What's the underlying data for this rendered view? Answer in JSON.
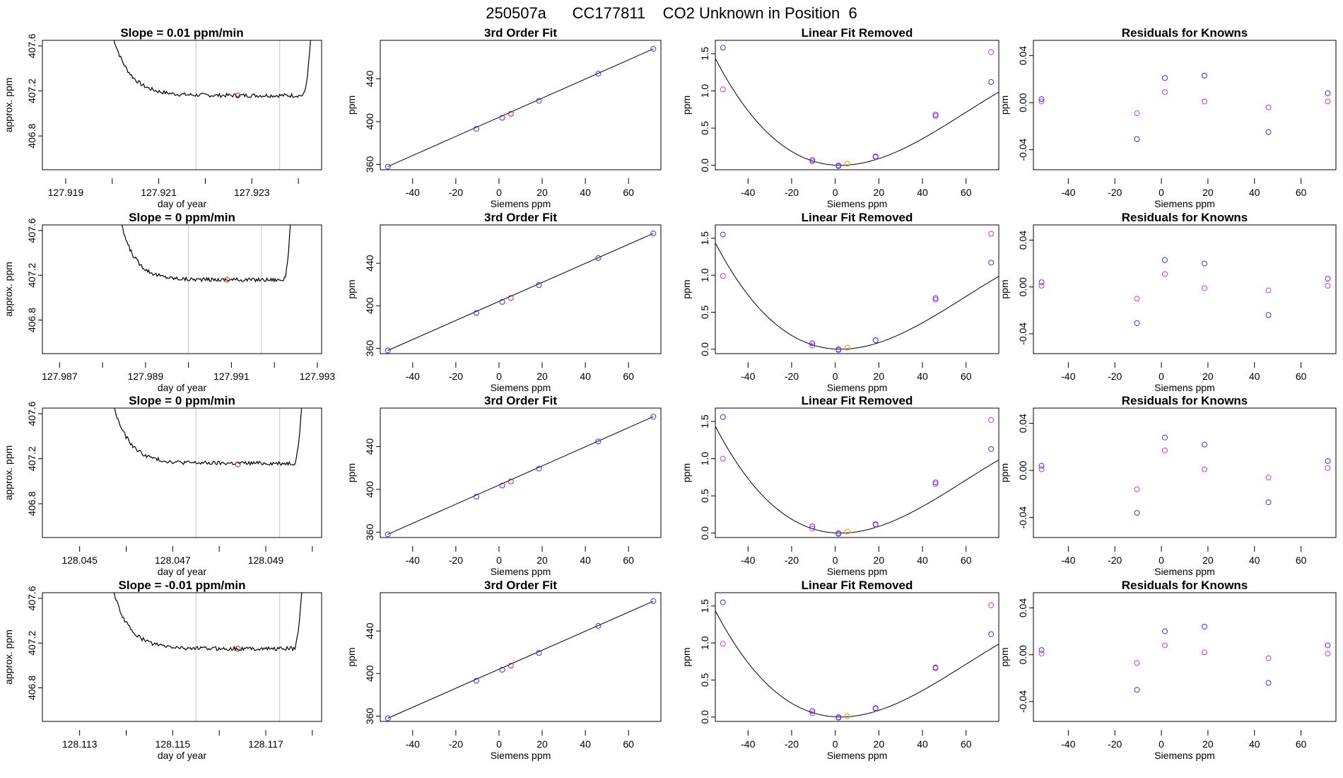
{
  "figure": {
    "title": "250507a      CC177811    CO2 Unknown in Position  6"
  },
  "chart_data": [
    {
      "type": "line",
      "panel": "trace",
      "row": 0,
      "title": "Slope =  0.01  ppm/min",
      "xlabel": "day of year",
      "ylabel": "approx. ppm",
      "xlim": [
        127.9185,
        127.9245
      ],
      "ylim": [
        406.5,
        407.65
      ],
      "xticks": [
        "127.919",
        "127.921",
        "127.923"
      ],
      "xtick_values": [
        127.919,
        127.921,
        127.923
      ],
      "minor_xticks": [
        127.92,
        127.922,
        127.924
      ],
      "yticks": [
        "406.8",
        "407.2",
        "407.6"
      ],
      "ytick_values": [
        406.8,
        407.2,
        407.6
      ],
      "start": 127.92,
      "end": 127.9244,
      "window": [
        127.9218,
        127.9236
      ],
      "plateau": 407.16,
      "settle_rise": 0.55,
      "marker": {
        "x": 127.9227,
        "y": 407.16
      },
      "trace_color": "#000000",
      "marker_color": "#dd2222",
      "window_color": "#c8c8c8"
    },
    {
      "type": "scatter",
      "panel": "fit",
      "row": 0,
      "title": "3rd Order Fit",
      "xlabel": "Siemens ppm",
      "ylabel": "ppm",
      "xlim": [
        -55,
        75
      ],
      "ylim": [
        355,
        476
      ],
      "xticks": [
        "-40",
        "-20",
        "0",
        "20",
        "40",
        "60"
      ],
      "xtick_values": [
        -40,
        -20,
        0,
        20,
        40,
        60
      ],
      "yticks": [
        "360",
        "400",
        "440"
      ],
      "ytick_values": [
        360,
        400,
        440
      ],
      "knowns": {
        "x": [
          -51.5,
          -10.5,
          1.5,
          18.5,
          46,
          71.5
        ],
        "y": [
          358,
          393.2,
          403.6,
          419.4,
          444.8,
          468
        ]
      },
      "unknown": {
        "x": 5.5,
        "y": 407.4
      },
      "line": {
        "x": [
          -51.5,
          71.5
        ],
        "y": [
          358,
          468
        ]
      },
      "known_color": "#3333ff",
      "unknown_color": "#dd2222"
    },
    {
      "type": "scatter",
      "panel": "linfit",
      "row": 0,
      "title": "Linear Fit Removed",
      "xlabel": "Siemens ppm",
      "ylabel": "ppm",
      "xlim": [
        -55,
        75
      ],
      "ylim": [
        -0.06,
        1.68
      ],
      "xticks": [
        "-40",
        "-20",
        "0",
        "20",
        "40",
        "60"
      ],
      "xtick_values": [
        -40,
        -20,
        0,
        20,
        40,
        60
      ],
      "yticks": [
        "0.0",
        "0.5",
        "1.0",
        "1.5"
      ],
      "ytick_values": [
        0,
        0.5,
        1,
        1.5
      ],
      "curve_vertex": 2.5,
      "curve_a": 0.000325,
      "curve_b": 1.9e-06,
      "blue": {
        "x": [
          -51.5,
          -10.5,
          1.5,
          18.5,
          46,
          71.5
        ],
        "y": [
          1.58,
          0.07,
          -0.01,
          0.12,
          0.68,
          1.12
        ]
      },
      "magenta": {
        "x": [
          -51.5,
          -10.5,
          1.5,
          18.5,
          46,
          71.5
        ],
        "y": [
          1.02,
          0.05,
          0.0,
          0.11,
          0.66,
          1.52
        ]
      },
      "unknown": {
        "x": 5.5,
        "y": 0.02
      },
      "blue_color": "#3333ff",
      "magenta_color": "#dd33dd",
      "unknown_color": "#ff8800"
    },
    {
      "type": "scatter",
      "panel": "resid",
      "row": 0,
      "title": "Residuals for Knowns",
      "xlabel": "Siemens ppm",
      "ylabel": "ppm",
      "xlim": [
        -55,
        75
      ],
      "ylim": [
        -0.057,
        0.053
      ],
      "xticks": [
        "-40",
        "-20",
        "0",
        "20",
        "40",
        "60"
      ],
      "xtick_values": [
        -40,
        -20,
        0,
        20,
        40,
        60
      ],
      "yticks": [
        "-0.04",
        "0.00",
        "0.04"
      ],
      "ytick_values": [
        -0.04,
        0,
        0.04
      ],
      "blue": {
        "x": [
          -51.5,
          -10.5,
          1.5,
          18.5,
          46,
          71.5
        ],
        "y": [
          0.003,
          -0.031,
          0.021,
          0.023,
          -0.025,
          0.008
        ]
      },
      "magenta": {
        "x": [
          -51.5,
          -10.5,
          1.5,
          18.5,
          46,
          71.5
        ],
        "y": [
          0.001,
          -0.009,
          0.009,
          0.001,
          -0.004,
          0.001
        ]
      },
      "blue_color": "#3333ff",
      "magenta_color": "#dd33dd"
    },
    {
      "type": "line",
      "panel": "trace",
      "row": 1,
      "title": "Slope =  0  ppm/min",
      "xlabel": "day of year",
      "ylabel": "approx. ppm",
      "xlim": [
        127.9866,
        127.9931
      ],
      "ylim": [
        406.5,
        407.65
      ],
      "xticks": [
        "127.987",
        "127.989",
        "127.991",
        "127.993"
      ],
      "xtick_values": [
        127.987,
        127.989,
        127.991,
        127.993
      ],
      "minor_xticks": [
        127.988,
        127.99,
        127.992
      ],
      "yticks": [
        "406.8",
        "407.2",
        "407.6"
      ],
      "ytick_values": [
        406.8,
        407.2,
        407.6
      ],
      "start": 127.9884,
      "end": 127.9925,
      "window": [
        127.99,
        127.9917
      ],
      "plateau": 407.16,
      "settle_rise": 0.55,
      "marker": {
        "x": 127.9909,
        "y": 407.16
      },
      "trace_color": "#000000",
      "marker_color": "#dd2222",
      "window_color": "#c8c8c8"
    },
    {
      "type": "scatter",
      "panel": "fit",
      "row": 1,
      "title": "3rd Order Fit",
      "xlabel": "Siemens ppm",
      "ylabel": "ppm",
      "xlim": [
        -55,
        75
      ],
      "ylim": [
        355,
        476
      ],
      "xticks": [
        "-40",
        "-20",
        "0",
        "20",
        "40",
        "60"
      ],
      "xtick_values": [
        -40,
        -20,
        0,
        20,
        40,
        60
      ],
      "yticks": [
        "360",
        "400",
        "440"
      ],
      "ytick_values": [
        360,
        400,
        440
      ],
      "knowns": {
        "x": [
          -51.5,
          -10.5,
          1.5,
          18.5,
          46,
          71.5
        ],
        "y": [
          358,
          393.2,
          403.6,
          419.4,
          444.8,
          468
        ]
      },
      "unknown": {
        "x": 5.5,
        "y": 407.4
      },
      "line": {
        "x": [
          -51.5,
          71.5
        ],
        "y": [
          358,
          468
        ]
      },
      "known_color": "#3333ff",
      "unknown_color": "#dd2222"
    },
    {
      "type": "scatter",
      "panel": "linfit",
      "row": 1,
      "title": "Linear Fit Removed",
      "xlabel": "Siemens ppm",
      "ylabel": "ppm",
      "xlim": [
        -55,
        75
      ],
      "ylim": [
        -0.06,
        1.68
      ],
      "xticks": [
        "-40",
        "-20",
        "0",
        "20",
        "40",
        "60"
      ],
      "xtick_values": [
        -40,
        -20,
        0,
        20,
        40,
        60
      ],
      "yticks": [
        "0.0",
        "0.5",
        "1.0",
        "1.5"
      ],
      "ytick_values": [
        0,
        0.5,
        1,
        1.5
      ],
      "curve_vertex": 2.5,
      "curve_a": 0.000325,
      "curve_b": 1.9e-06,
      "blue": {
        "x": [
          -51.5,
          -10.5,
          1.5,
          18.5,
          46,
          71.5
        ],
        "y": [
          1.55,
          0.08,
          -0.01,
          0.12,
          0.69,
          1.17
        ]
      },
      "magenta": {
        "x": [
          -51.5,
          -10.5,
          1.5,
          18.5,
          46,
          71.5
        ],
        "y": [
          0.99,
          0.05,
          0.0,
          0.12,
          0.67,
          1.56
        ]
      },
      "unknown": {
        "x": 5.5,
        "y": 0.02
      },
      "blue_color": "#3333ff",
      "magenta_color": "#dd33dd",
      "unknown_color": "#ff8800"
    },
    {
      "type": "scatter",
      "panel": "resid",
      "row": 1,
      "title": "Residuals for Knowns",
      "xlabel": "Siemens ppm",
      "ylabel": "ppm",
      "xlim": [
        -55,
        75
      ],
      "ylim": [
        -0.057,
        0.053
      ],
      "xticks": [
        "-40",
        "-20",
        "0",
        "20",
        "40",
        "60"
      ],
      "xtick_values": [
        -40,
        -20,
        0,
        20,
        40,
        60
      ],
      "yticks": [
        "-0.04",
        "0.00",
        "0.04"
      ],
      "ytick_values": [
        -0.04,
        0,
        0.04
      ],
      "blue": {
        "x": [
          -51.5,
          -10.5,
          1.5,
          18.5,
          46,
          71.5
        ],
        "y": [
          0.004,
          -0.031,
          0.023,
          0.02,
          -0.024,
          0.007
        ]
      },
      "magenta": {
        "x": [
          -51.5,
          -10.5,
          1.5,
          18.5,
          46,
          71.5
        ],
        "y": [
          0.001,
          -0.01,
          0.011,
          -0.001,
          -0.003,
          0.001
        ]
      },
      "blue_color": "#3333ff",
      "magenta_color": "#dd33dd"
    },
    {
      "type": "line",
      "panel": "trace",
      "row": 2,
      "title": "Slope =  0  ppm/min",
      "xlabel": "day of year",
      "ylabel": "approx. ppm",
      "xlim": [
        128.0442,
        128.0502
      ],
      "ylim": [
        406.5,
        407.65
      ],
      "xticks": [
        "128.045",
        "128.047",
        "128.049"
      ],
      "xtick_values": [
        128.045,
        128.047,
        128.049
      ],
      "minor_xticks": [
        128.046,
        128.048,
        128.05
      ],
      "yticks": [
        "406.8",
        "407.2",
        "407.6"
      ],
      "ytick_values": [
        406.8,
        407.2,
        407.6
      ],
      "start": 128.0457,
      "end": 128.0499,
      "window": [
        128.0475,
        128.0493
      ],
      "plateau": 407.16,
      "settle_rise": 0.55,
      "marker": {
        "x": 128.0484,
        "y": 407.15
      },
      "trace_color": "#000000",
      "marker_color": "#dd2222",
      "window_color": "#c8c8c8"
    },
    {
      "type": "scatter",
      "panel": "fit",
      "row": 2,
      "title": "3rd Order Fit",
      "xlabel": "Siemens ppm",
      "ylabel": "ppm",
      "xlim": [
        -55,
        75
      ],
      "ylim": [
        355,
        476
      ],
      "xticks": [
        "-40",
        "-20",
        "0",
        "20",
        "40",
        "60"
      ],
      "xtick_values": [
        -40,
        -20,
        0,
        20,
        40,
        60
      ],
      "yticks": [
        "360",
        "400",
        "440"
      ],
      "ytick_values": [
        360,
        400,
        440
      ],
      "knowns": {
        "x": [
          -51.5,
          -10.5,
          1.5,
          18.5,
          46,
          71.5
        ],
        "y": [
          358,
          393.2,
          403.6,
          419.4,
          444.8,
          468
        ]
      },
      "unknown": {
        "x": 5.5,
        "y": 407.4
      },
      "line": {
        "x": [
          -51.5,
          71.5
        ],
        "y": [
          358,
          468
        ]
      },
      "known_color": "#3333ff",
      "unknown_color": "#dd2222"
    },
    {
      "type": "scatter",
      "panel": "linfit",
      "row": 2,
      "title": "Linear Fit Removed",
      "xlabel": "Siemens ppm",
      "ylabel": "ppm",
      "xlim": [
        -55,
        75
      ],
      "ylim": [
        -0.06,
        1.68
      ],
      "xticks": [
        "-40",
        "-20",
        "0",
        "20",
        "40",
        "60"
      ],
      "xtick_values": [
        -40,
        -20,
        0,
        20,
        40,
        60
      ],
      "yticks": [
        "0.0",
        "0.5",
        "1.0",
        "1.5"
      ],
      "ytick_values": [
        0,
        0.5,
        1,
        1.5
      ],
      "curve_vertex": 2.5,
      "curve_a": 0.000325,
      "curve_b": 1.9e-06,
      "blue": {
        "x": [
          -51.5,
          -10.5,
          1.5,
          18.5,
          46,
          71.5
        ],
        "y": [
          1.56,
          0.09,
          -0.01,
          0.12,
          0.68,
          1.13
        ]
      },
      "magenta": {
        "x": [
          -51.5,
          -10.5,
          1.5,
          18.5,
          46,
          71.5
        ],
        "y": [
          1.0,
          0.06,
          0.0,
          0.11,
          0.66,
          1.52
        ]
      },
      "unknown": {
        "x": 5.5,
        "y": 0.02
      },
      "blue_color": "#3333ff",
      "magenta_color": "#dd33dd",
      "unknown_color": "#ff8800"
    },
    {
      "type": "scatter",
      "panel": "resid",
      "row": 2,
      "title": "Residuals for Knowns",
      "xlabel": "Siemens ppm",
      "ylabel": "ppm",
      "xlim": [
        -55,
        75
      ],
      "ylim": [
        -0.057,
        0.053
      ],
      "xticks": [
        "-40",
        "-20",
        "0",
        "20",
        "40",
        "60"
      ],
      "xtick_values": [
        -40,
        -20,
        0,
        20,
        40,
        60
      ],
      "yticks": [
        "-0.04",
        "0.00",
        "0.04"
      ],
      "ytick_values": [
        -0.04,
        0,
        0.04
      ],
      "blue": {
        "x": [
          -51.5,
          -10.5,
          1.5,
          18.5,
          46,
          71.5
        ],
        "y": [
          0.004,
          -0.036,
          0.028,
          0.022,
          -0.027,
          0.008
        ]
      },
      "magenta": {
        "x": [
          -51.5,
          -10.5,
          1.5,
          18.5,
          46,
          71.5
        ],
        "y": [
          0.001,
          -0.016,
          0.017,
          0.001,
          -0.006,
          0.002
        ]
      },
      "blue_color": "#3333ff",
      "magenta_color": "#dd33dd"
    },
    {
      "type": "line",
      "panel": "trace",
      "row": 3,
      "title": "Slope =  -0.01  ppm/min",
      "xlabel": "day of year",
      "ylabel": "approx. ppm",
      "xlim": [
        128.1122,
        128.1182
      ],
      "ylim": [
        406.5,
        407.65
      ],
      "xticks": [
        "128.113",
        "128.115",
        "128.117"
      ],
      "xtick_values": [
        128.113,
        128.115,
        128.117
      ],
      "minor_xticks": [
        128.114,
        128.116,
        128.118
      ],
      "yticks": [
        "406.8",
        "407.2",
        "407.6"
      ],
      "ytick_values": [
        406.8,
        407.2,
        407.6
      ],
      "start": 128.1137,
      "end": 128.1179,
      "window": [
        128.1155,
        128.1173
      ],
      "plateau": 407.15,
      "settle_rise": 0.55,
      "marker": {
        "x": 128.1164,
        "y": 407.15
      },
      "trace_color": "#000000",
      "marker_color": "#dd2222",
      "window_color": "#c8c8c8"
    },
    {
      "type": "scatter",
      "panel": "fit",
      "row": 3,
      "title": "3rd Order Fit",
      "xlabel": "Siemens ppm",
      "ylabel": "ppm",
      "xlim": [
        -55,
        75
      ],
      "ylim": [
        355,
        476
      ],
      "xticks": [
        "-40",
        "-20",
        "0",
        "20",
        "40",
        "60"
      ],
      "xtick_values": [
        -40,
        -20,
        0,
        20,
        40,
        60
      ],
      "yticks": [
        "360",
        "400",
        "440"
      ],
      "ytick_values": [
        360,
        400,
        440
      ],
      "knowns": {
        "x": [
          -51.5,
          -10.5,
          1.5,
          18.5,
          46,
          71.5
        ],
        "y": [
          358,
          393.2,
          403.6,
          419.4,
          444.8,
          468
        ]
      },
      "unknown": {
        "x": 5.5,
        "y": 407.4
      },
      "line": {
        "x": [
          -51.5,
          71.5
        ],
        "y": [
          358,
          468
        ]
      },
      "known_color": "#3333ff",
      "unknown_color": "#dd2222"
    },
    {
      "type": "scatter",
      "panel": "linfit",
      "row": 3,
      "title": "Linear Fit Removed",
      "xlabel": "Siemens ppm",
      "ylabel": "ppm",
      "xlim": [
        -55,
        75
      ],
      "ylim": [
        -0.06,
        1.68
      ],
      "xticks": [
        "-40",
        "-20",
        "0",
        "20",
        "40",
        "60"
      ],
      "xtick_values": [
        -40,
        -20,
        0,
        20,
        40,
        60
      ],
      "yticks": [
        "0.0",
        "0.5",
        "1.0",
        "1.5"
      ],
      "ytick_values": [
        0,
        0.5,
        1,
        1.5
      ],
      "curve_vertex": 2.5,
      "curve_a": 0.000325,
      "curve_b": 1.9e-06,
      "blue": {
        "x": [
          -51.5,
          -10.5,
          1.5,
          18.5,
          46,
          71.5
        ],
        "y": [
          1.55,
          0.08,
          -0.01,
          0.12,
          0.67,
          1.12
        ]
      },
      "magenta": {
        "x": [
          -51.5,
          -10.5,
          1.5,
          18.5,
          46,
          71.5
        ],
        "y": [
          0.99,
          0.05,
          0.0,
          0.11,
          0.66,
          1.51
        ]
      },
      "unknown": {
        "x": 5.5,
        "y": 0.01
      },
      "blue_color": "#3333ff",
      "magenta_color": "#dd33dd",
      "unknown_color": "#ff8800"
    },
    {
      "type": "scatter",
      "panel": "resid",
      "row": 3,
      "title": "Residuals for Knowns",
      "xlabel": "Siemens ppm",
      "ylabel": "ppm",
      "xlim": [
        -55,
        75
      ],
      "ylim": [
        -0.057,
        0.053
      ],
      "xticks": [
        "-40",
        "-20",
        "0",
        "20",
        "40",
        "60"
      ],
      "xtick_values": [
        -40,
        -20,
        0,
        20,
        40,
        60
      ],
      "yticks": [
        "-0.04",
        "0.00",
        "0.04"
      ],
      "ytick_values": [
        -0.04,
        0,
        0.04
      ],
      "blue": {
        "x": [
          -51.5,
          -10.5,
          1.5,
          18.5,
          46,
          71.5
        ],
        "y": [
          0.004,
          -0.03,
          0.02,
          0.024,
          -0.024,
          0.008
        ]
      },
      "magenta": {
        "x": [
          -51.5,
          -10.5,
          1.5,
          18.5,
          46,
          71.5
        ],
        "y": [
          0.001,
          -0.007,
          0.008,
          0.002,
          -0.003,
          0.001
        ]
      },
      "blue_color": "#3333ff",
      "magenta_color": "#dd33dd"
    }
  ]
}
